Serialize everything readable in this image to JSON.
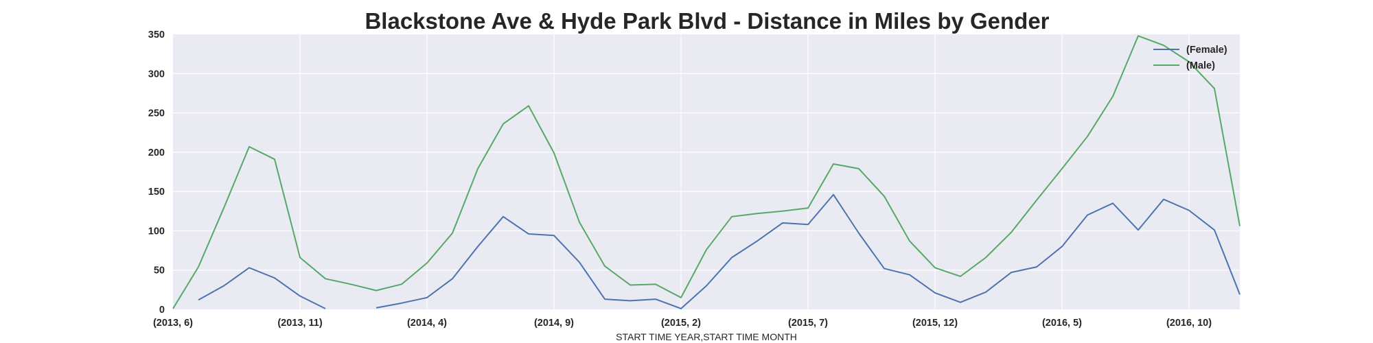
{
  "colors": {
    "background": "#ffffff",
    "plot_background": "#eaeaf2",
    "grid": "#ffffff",
    "female": "#4c72b0",
    "male": "#55a868"
  },
  "chart_data": {
    "type": "line",
    "title": "Blackstone Ave & Hyde Park Blvd - Distance in Miles by Gender",
    "xlabel": "START TIME YEAR,START TIME MONTH",
    "ylabel": "",
    "ylim": [
      0,
      350
    ],
    "yticks": [
      "0",
      "50",
      "100",
      "150",
      "200",
      "250",
      "300",
      "350"
    ],
    "x": [
      "(2013, 6)",
      "(2013, 7)",
      "(2013, 8)",
      "(2013, 9)",
      "(2013, 10)",
      "(2013, 11)",
      "(2013, 12)",
      "(2014, 1)",
      "(2014, 2)",
      "(2014, 3)",
      "(2014, 4)",
      "(2014, 5)",
      "(2014, 6)",
      "(2014, 7)",
      "(2014, 8)",
      "(2014, 9)",
      "(2014, 10)",
      "(2014, 11)",
      "(2014, 12)",
      "(2015, 1)",
      "(2015, 2)",
      "(2015, 3)",
      "(2015, 4)",
      "(2015, 5)",
      "(2015, 6)",
      "(2015, 7)",
      "(2015, 8)",
      "(2015, 9)",
      "(2015, 10)",
      "(2015, 11)",
      "(2015, 12)",
      "(2016, 1)",
      "(2016, 2)",
      "(2016, 3)",
      "(2016, 4)",
      "(2016, 5)",
      "(2016, 6)",
      "(2016, 7)",
      "(2016, 8)",
      "(2016, 9)",
      "(2016, 10)",
      "(2016, 11)",
      "(2016, 12)"
    ],
    "xticks": [
      "(2013, 6)",
      "(2013, 11)",
      "(2014, 4)",
      "(2014, 9)",
      "(2015, 2)",
      "(2015, 7)",
      "(2015, 12)",
      "(2016, 5)",
      "(2016, 10)"
    ],
    "series": [
      {
        "name": "(Female)",
        "values": [
          null,
          12,
          30,
          53,
          40,
          17,
          1,
          null,
          2,
          8,
          15,
          39,
          80,
          118,
          96,
          94,
          60,
          13,
          11,
          13,
          1,
          30,
          66,
          87,
          110,
          108,
          146,
          97,
          52,
          44,
          21,
          9,
          22,
          47,
          54,
          80,
          120,
          135,
          101,
          140,
          126,
          101,
          19
        ]
      },
      {
        "name": "(Male)",
        "values": [
          1,
          54,
          129,
          207,
          191,
          66,
          39,
          32,
          24,
          32,
          59,
          97,
          179,
          236,
          259,
          199,
          111,
          55,
          31,
          32,
          15,
          76,
          118,
          122,
          125,
          129,
          185,
          179,
          144,
          87,
          53,
          42,
          66,
          98,
          139,
          179,
          220,
          271,
          348,
          336,
          315,
          281,
          106
        ]
      }
    ],
    "legend_placement": "top-right",
    "grid": true
  }
}
